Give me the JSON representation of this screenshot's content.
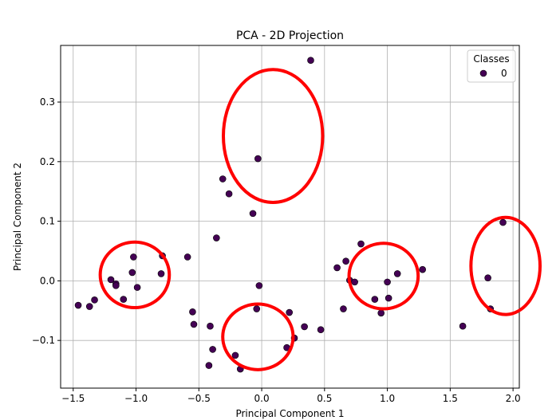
{
  "chart_data": {
    "type": "scatter",
    "title": "PCA - 2D Projection",
    "xlabel": "Principal Component 1",
    "ylabel": "Principal Component 2",
    "xlim": [
      -1.6,
      2.05
    ],
    "ylim": [
      -0.18,
      0.395
    ],
    "xticks": [
      -1.5,
      -1.0,
      -0.5,
      0.0,
      0.5,
      1.0,
      1.5,
      2.0
    ],
    "xtick_labels": [
      "−1.5",
      "−1.0",
      "−0.5",
      "0.0",
      "0.5",
      "1.0",
      "1.5",
      "2.0"
    ],
    "yticks": [
      -0.1,
      0.0,
      0.1,
      0.2,
      0.3
    ],
    "ytick_labels": [
      "−0.1",
      "0.0",
      "0.1",
      "0.2",
      "0.3"
    ],
    "grid": true,
    "legend": {
      "title": "Classes",
      "placement": "top-right",
      "entries": [
        {
          "label": "0",
          "color": "#440154"
        }
      ]
    },
    "series": [
      {
        "name": "0",
        "color": "#440154",
        "points": [
          [
            0.39,
            0.37
          ],
          [
            -0.03,
            0.205
          ],
          [
            -0.31,
            0.171
          ],
          [
            -0.26,
            0.146
          ],
          [
            -0.07,
            0.113
          ],
          [
            -0.36,
            0.072
          ],
          [
            -1.46,
            -0.041
          ],
          [
            -1.37,
            -0.043
          ],
          [
            -1.33,
            -0.032
          ],
          [
            -1.2,
            0.002
          ],
          [
            -1.16,
            -0.005
          ],
          [
            -1.16,
            -0.008
          ],
          [
            -1.02,
            0.04
          ],
          [
            -1.03,
            0.014
          ],
          [
            -0.99,
            -0.011
          ],
          [
            -1.1,
            -0.031
          ],
          [
            -0.79,
            0.042
          ],
          [
            -0.8,
            0.012
          ],
          [
            -0.59,
            0.04
          ],
          [
            -0.55,
            -0.052
          ],
          [
            -0.54,
            -0.073
          ],
          [
            -0.41,
            -0.076
          ],
          [
            -0.39,
            -0.115
          ],
          [
            -0.42,
            -0.142
          ],
          [
            -0.21,
            -0.125
          ],
          [
            -0.17,
            -0.148
          ],
          [
            -0.02,
            -0.008
          ],
          [
            -0.04,
            -0.047
          ],
          [
            0.22,
            -0.053
          ],
          [
            0.2,
            -0.112
          ],
          [
            0.26,
            -0.096
          ],
          [
            0.34,
            -0.077
          ],
          [
            0.47,
            -0.082
          ],
          [
            0.6,
            0.022
          ],
          [
            0.67,
            0.033
          ],
          [
            0.79,
            0.062
          ],
          [
            0.7,
            0.001
          ],
          [
            0.74,
            -0.002
          ],
          [
            0.65,
            -0.047
          ],
          [
            0.9,
            -0.031
          ],
          [
            0.95,
            -0.054
          ],
          [
            1.0,
            -0.002
          ],
          [
            1.01,
            -0.029
          ],
          [
            1.08,
            0.012
          ],
          [
            1.28,
            0.019
          ],
          [
            1.6,
            -0.076
          ],
          [
            1.8,
            0.005
          ],
          [
            1.82,
            -0.047
          ],
          [
            1.92,
            0.098
          ]
        ]
      }
    ],
    "annotations": [
      {
        "shape": "ellipse",
        "color": "#ff0000",
        "cx": 0.09,
        "cy": 0.243,
        "rx": 0.79,
        "ry": 0.223
      },
      {
        "shape": "ellipse",
        "color": "#ff0000",
        "cx": -1.01,
        "cy": 0.01,
        "rx": 0.55,
        "ry": 0.11
      },
      {
        "shape": "ellipse",
        "color": "#ff0000",
        "cx": -0.03,
        "cy": -0.094,
        "rx": 0.56,
        "ry": 0.11
      },
      {
        "shape": "ellipse",
        "color": "#ff0000",
        "cx": 0.97,
        "cy": 0.008,
        "rx": 0.55,
        "ry": 0.11
      },
      {
        "shape": "ellipse",
        "color": "#ff0000",
        "cx": 1.94,
        "cy": 0.025,
        "rx": 0.55,
        "ry": 0.163
      }
    ]
  }
}
